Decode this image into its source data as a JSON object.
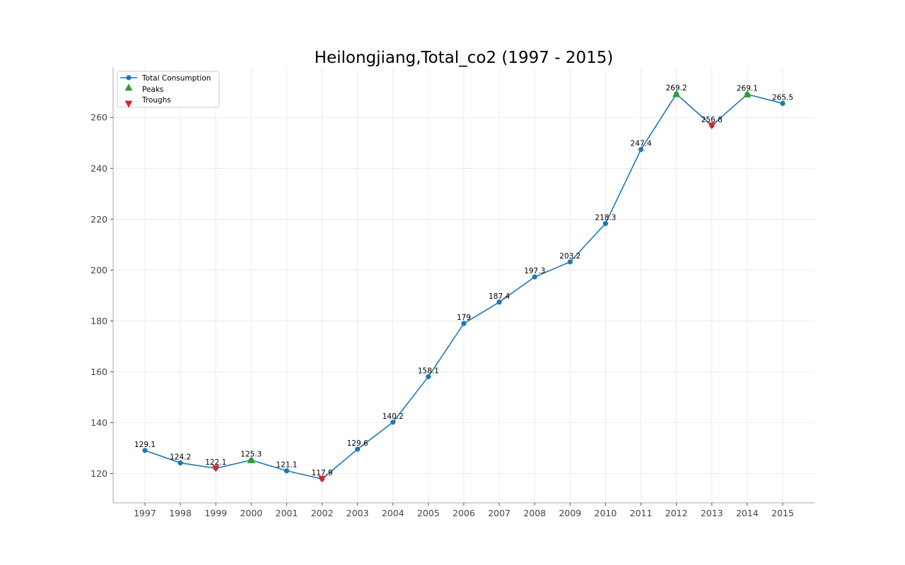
{
  "chart_data": {
    "type": "line",
    "title": "Heilongjiang,Total_co2 (1997 - 2015)",
    "xlabel": "",
    "ylabel": "",
    "x": [
      "1997",
      "1998",
      "1999",
      "2000",
      "2001",
      "2002",
      "2003",
      "2004",
      "2005",
      "2006",
      "2007",
      "2008",
      "2009",
      "2010",
      "2011",
      "2012",
      "2013",
      "2014",
      "2015"
    ],
    "series": [
      {
        "name": "Total Consumption",
        "values": [
          129.1,
          124.2,
          122.1,
          125.3,
          121.1,
          117.9,
          129.6,
          140.2,
          158.1,
          179,
          187.4,
          197.3,
          203.2,
          218.3,
          247.4,
          269.2,
          256.8,
          269.1,
          265.5
        ],
        "labels": [
          "129.1",
          "124.2",
          "122.1",
          "125.3",
          "121.1",
          "117.9",
          "129.6",
          "140.2",
          "158.1",
          "179",
          "187.4",
          "197.3",
          "203.2",
          "218.3",
          "247.4",
          "269.2",
          "256.8",
          "269.1",
          "265.5"
        ],
        "color": "#1f77b4"
      }
    ],
    "peaks": {
      "name": "Peaks",
      "x": [
        "2000",
        "2012",
        "2014"
      ],
      "values": [
        125.3,
        269.2,
        269.1
      ],
      "color": "#2ca02c"
    },
    "troughs": {
      "name": "Troughs",
      "x": [
        "1999",
        "2002",
        "2013"
      ],
      "values": [
        122.1,
        117.9,
        256.8
      ],
      "color": "#d62728"
    },
    "yticks": [
      120,
      140,
      160,
      180,
      200,
      220,
      240,
      260
    ],
    "ylim": [
      108.5,
      279.5
    ],
    "grid": true,
    "legend_position": "top-left"
  }
}
